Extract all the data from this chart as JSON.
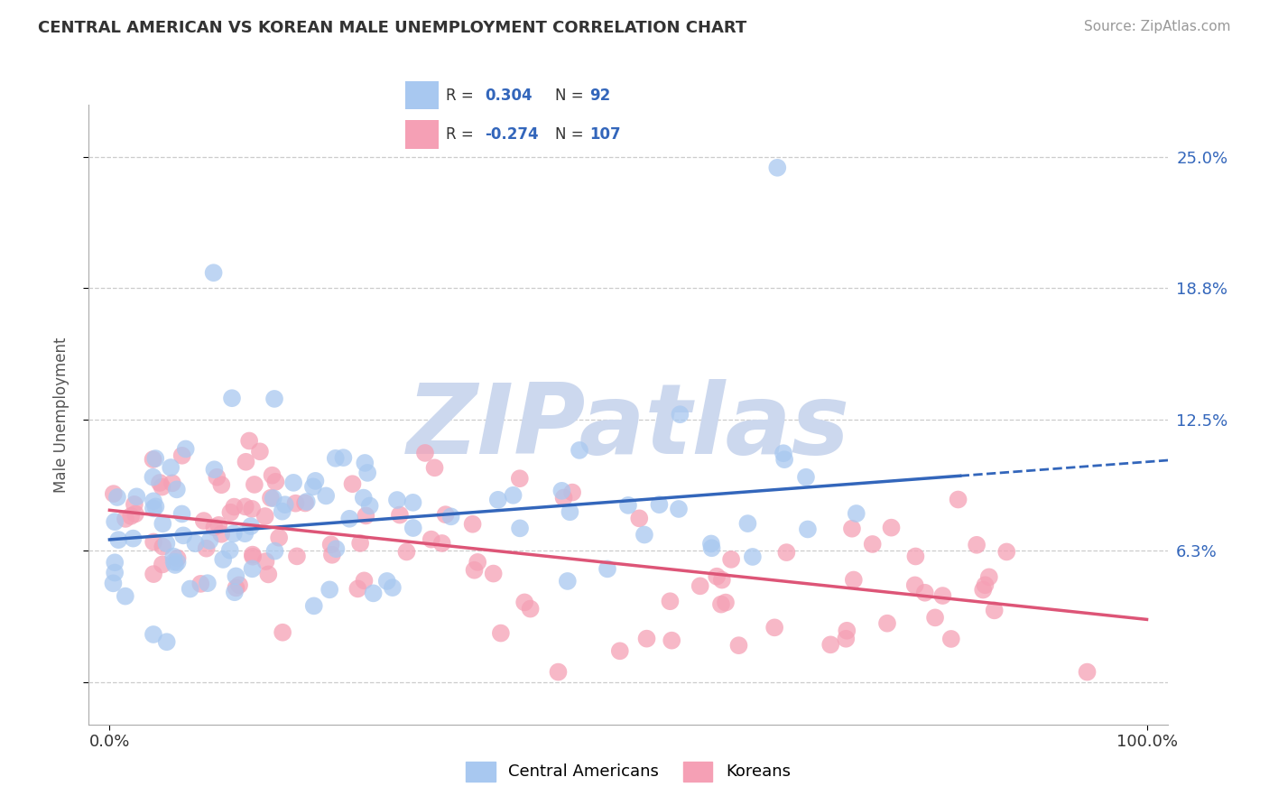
{
  "title": "CENTRAL AMERICAN VS KOREAN MALE UNEMPLOYMENT CORRELATION CHART",
  "source": "Source: ZipAtlas.com",
  "ylabel": "Male Unemployment",
  "yticks": [
    0.0,
    0.063,
    0.125,
    0.188,
    0.25
  ],
  "ytick_labels": [
    "",
    "6.3%",
    "12.5%",
    "18.8%",
    "25.0%"
  ],
  "xlim": [
    -0.02,
    1.02
  ],
  "ylim": [
    -0.02,
    0.275
  ],
  "blue_scatter_color": "#a8c8f0",
  "pink_scatter_color": "#f5a0b5",
  "blue_line_color": "#3366bb",
  "pink_line_color": "#dd5577",
  "watermark_text": "ZIPatlas",
  "watermark_color": "#ccd8ee",
  "legend_r1": "0.304",
  "legend_n1": "92",
  "legend_r2": "-0.274",
  "legend_n2": "107",
  "ca_label": "Central Americans",
  "ko_label": "Koreans",
  "ca_trend_y0": 0.068,
  "ca_trend_y1": 0.105,
  "ko_trend_y0": 0.082,
  "ko_trend_y1": 0.03,
  "text_color_dark": "#333333",
  "text_color_blue": "#3366bb",
  "text_color_source": "#999999",
  "grid_color": "#cccccc",
  "spine_color": "#aaaaaa"
}
